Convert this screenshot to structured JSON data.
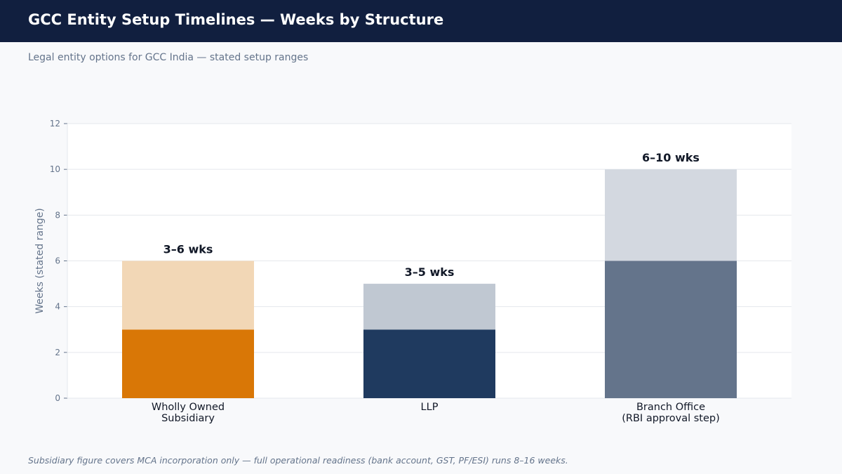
{
  "header": {
    "title": "GCC Entity Setup Timelines — Weeks by Structure",
    "subtitle": "Legal entity options for GCC India — stated setup ranges"
  },
  "footnote": "Subsidiary figure covers MCA incorporation only — full operational readiness (bank account, GST, PF/ESI) runs 8–16 weeks.",
  "chart_data": {
    "type": "bar",
    "stacked": true,
    "categories": [
      [
        "Wholly Owned",
        "Subsidiary"
      ],
      [
        "LLP"
      ],
      [
        "Branch Office",
        "(RBI approval step)"
      ]
    ],
    "series": [
      {
        "values": [
          3,
          3,
          6
        ],
        "colors": [
          "#d97706",
          "#1f3a5f",
          "#64748b"
        ]
      },
      {
        "values": [
          3,
          2,
          4
        ],
        "colors": [
          "#f2d7b6",
          "#c0c8d2",
          "#d3d8e0"
        ]
      }
    ],
    "ranges": [
      [
        3,
        6
      ],
      [
        3,
        5
      ],
      [
        6,
        10
      ]
    ],
    "data_labels": [
      "3–6 wks",
      "3–5 wks",
      "6–10 wks"
    ],
    "ylabel": "Weeks (stated range)",
    "ylim": [
      0,
      12
    ],
    "yticks": [
      0,
      2,
      4,
      6,
      8,
      10,
      12
    ],
    "grid": true,
    "legend": false
  }
}
